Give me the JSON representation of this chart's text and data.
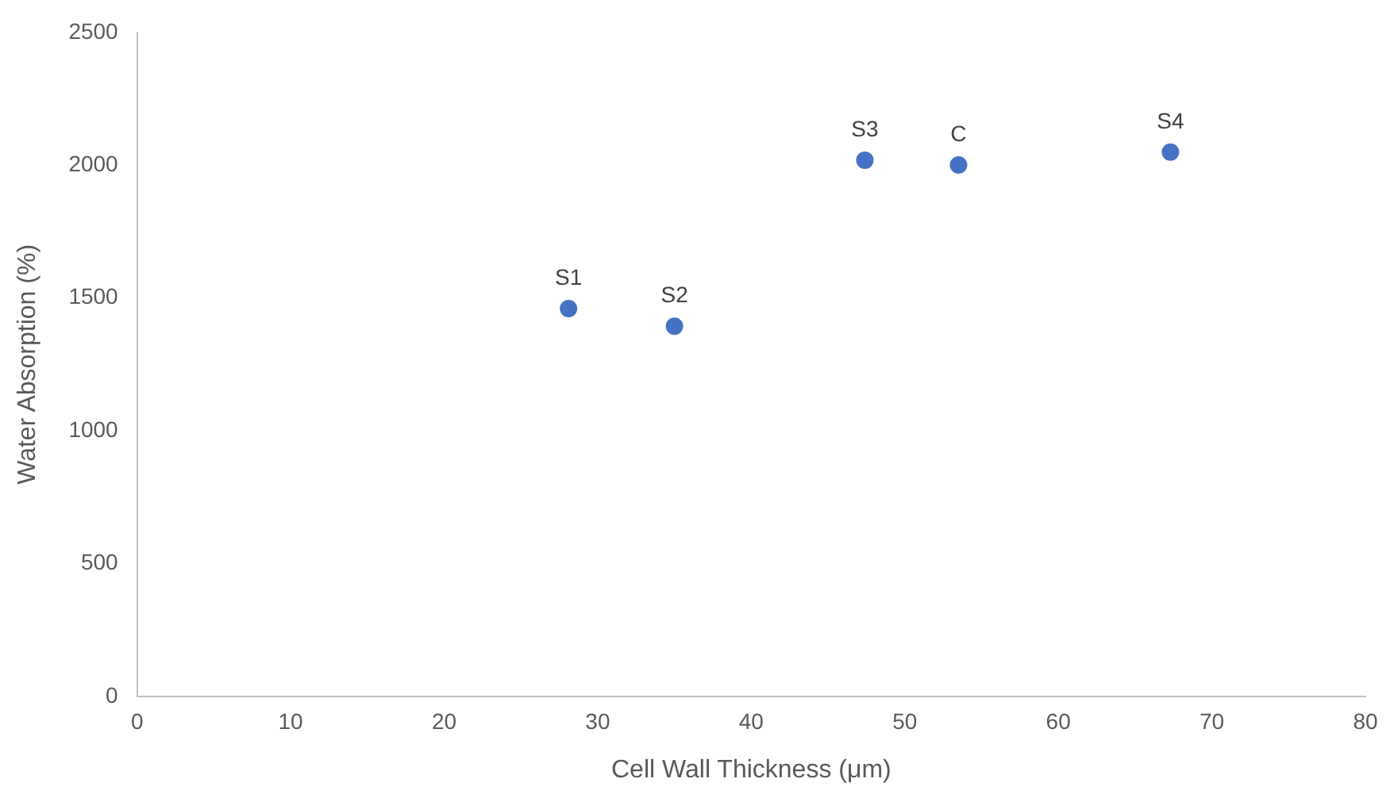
{
  "chart_data": {
    "type": "scatter",
    "xlabel": "Cell Wall Thickness (μm)",
    "ylabel": "Water Absorption (%)",
    "x": [
      28.1,
      35.0,
      47.4,
      53.5,
      67.3
    ],
    "series": [
      {
        "color": "#4472c4",
        "values": [
          1460,
          1394,
          2019,
          2001,
          2049
        ]
      }
    ],
    "annotations": [
      {
        "text": "S1",
        "x": 28.1,
        "y": 1460
      },
      {
        "text": "S2",
        "x": 35.0,
        "y": 1394
      },
      {
        "text": "S3",
        "x": 47.4,
        "y": 2019
      },
      {
        "text": "C",
        "x": 53.5,
        "y": 2001
      },
      {
        "text": "S4",
        "x": 67.3,
        "y": 2049
      }
    ],
    "xlim": [
      0,
      80
    ],
    "xticks": [
      0,
      10,
      20,
      30,
      40,
      50,
      60,
      70,
      80
    ],
    "ylim": [
      0,
      2500
    ],
    "yticks": [
      0,
      500,
      1000,
      1500,
      2000,
      2500
    ],
    "grid": false,
    "legend": false,
    "marker": "circle"
  }
}
